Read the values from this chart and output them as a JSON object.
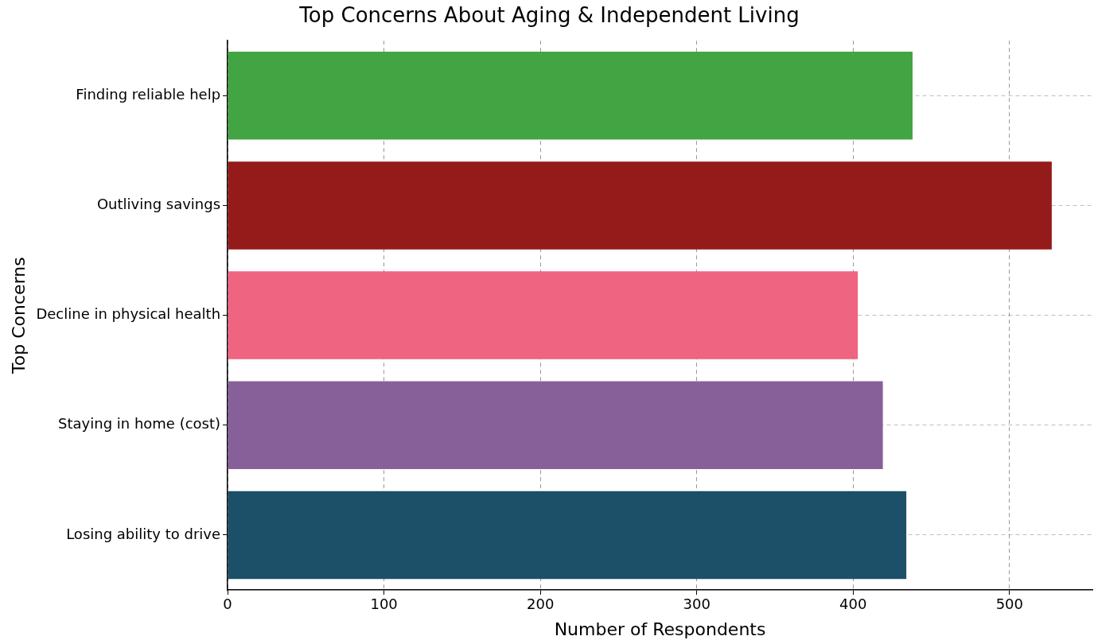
{
  "chart_data": {
    "type": "bar",
    "orientation": "horizontal",
    "title": "Top Concerns About Aging & Independent Living",
    "xlabel": "Number of Respondents",
    "ylabel": "Top Concerns",
    "categories": [
      "Finding reliable help",
      "Outliving savings",
      "Decline in physical health",
      "Staying in home (cost)",
      "Losing ability to drive"
    ],
    "values": [
      438,
      527,
      403,
      419,
      434
    ],
    "colors": [
      "#43a443",
      "#951b1b",
      "#ef6480",
      "#87609a",
      "#1b5068"
    ],
    "xlim": [
      0,
      553
    ],
    "xticks": [
      0,
      100,
      200,
      300,
      400,
      500
    ],
    "grid": true,
    "legend": false
  }
}
